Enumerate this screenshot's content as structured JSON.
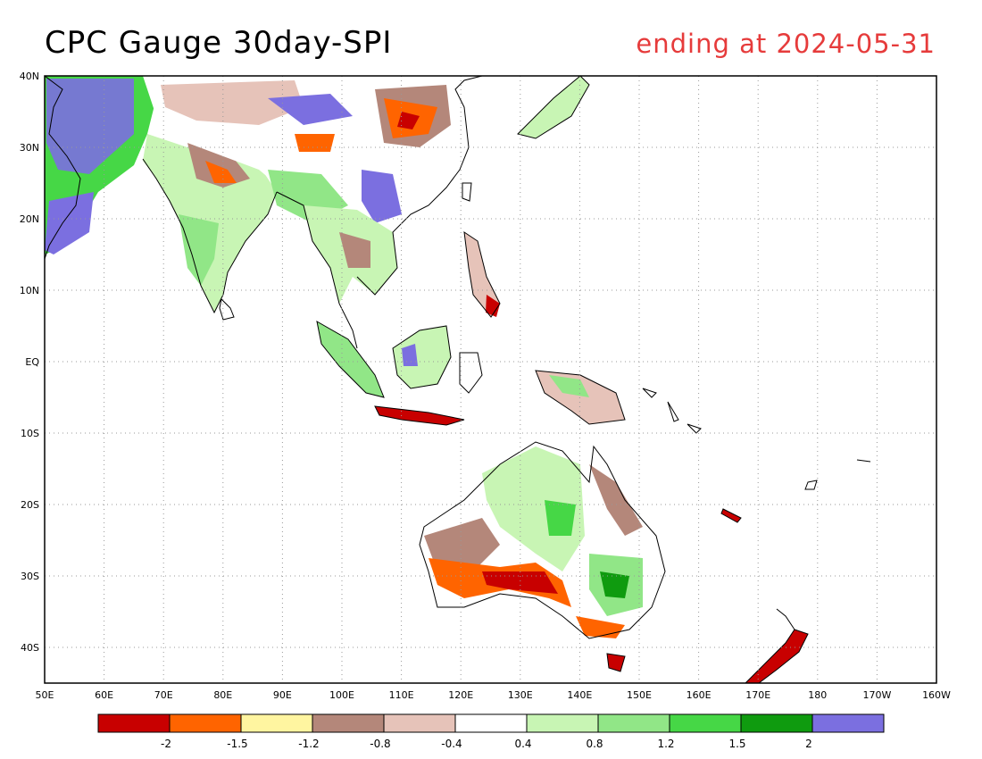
{
  "title": "CPC Gauge 30day-SPI",
  "subtitle": "ending at 2024-05-31",
  "map": {
    "projection": "lat-lon",
    "lon_range": [
      50,
      200
    ],
    "lat_range": [
      -45,
      40
    ],
    "lat_labels": [
      "40N",
      "30N",
      "20N",
      "10N",
      "EQ",
      "10S",
      "20S",
      "30S",
      "40S"
    ],
    "lon_labels": [
      "50E",
      "60E",
      "70E",
      "80E",
      "90E",
      "100E",
      "110E",
      "120E",
      "130E",
      "140E",
      "150E",
      "160E",
      "170E",
      "180",
      "170W",
      "160W"
    ],
    "grid": "dotted"
  },
  "colorbar": {
    "colors": [
      "#c80000",
      "#ff6400",
      "#fff5a0",
      "#b4877a",
      "#e6c3b9",
      "#ffffff",
      "#c8f5b4",
      "#91e687",
      "#46d746",
      "#0f9b0f",
      "#7b6fe0"
    ],
    "labels": [
      "-2",
      "-1.5",
      "-1.2",
      "-0.8",
      "-0.4",
      "0.4",
      "0.8",
      "1.2",
      "1.5",
      "2"
    ]
  },
  "colors": {
    "title": "#000000",
    "subtitle": "#e63b3b"
  }
}
